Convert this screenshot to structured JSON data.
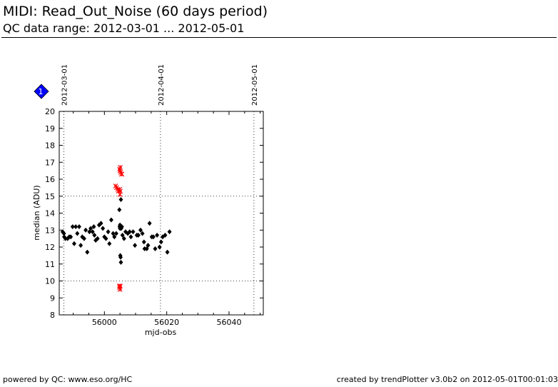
{
  "header": {
    "title": "MIDI: Read_Out_Noise (60 days period)",
    "subtitle": "QC data range: 2012-03-01 ... 2012-05-01"
  },
  "footer": {
    "left": "powered by QC: www.eso.org/HC",
    "right": "created by trendPlotter v3.0b2 on 2012-05-01T00:01:03"
  },
  "badge": {
    "label": "1",
    "color": "#0000ff",
    "icon": "blue-diamond-marker-icon"
  },
  "chart_data": {
    "type": "scatter",
    "title": "",
    "xlabel": "mjd-obs",
    "ylabel": "median (ADU)",
    "xlim": [
      55985.5,
      56051.0
    ],
    "ylim": [
      8,
      20
    ],
    "x_ticks": [
      56000,
      56020,
      56040
    ],
    "y_ticks": [
      8,
      9,
      10,
      11,
      12,
      13,
      14,
      15,
      16,
      17,
      18,
      19,
      20
    ],
    "reference_lines_y": [
      10,
      15
    ],
    "date_markers": [
      {
        "label": "2012-03-01",
        "x": 55987
      },
      {
        "label": "2012-04-01",
        "x": 56018
      },
      {
        "label": "2012-05-01",
        "x": 56048
      }
    ],
    "colors": {
      "nominal": "#000000",
      "outlier": "#ff0000"
    },
    "series": [
      {
        "marker": "diamond",
        "color": "#000000",
        "points": [
          [
            55986.6,
            12.9
          ],
          [
            55987.0,
            12.8
          ],
          [
            55987.1,
            12.6
          ],
          [
            55987.5,
            12.5
          ],
          [
            55988.2,
            12.5
          ],
          [
            55988.7,
            12.6
          ],
          [
            55989.2,
            12.6
          ],
          [
            55989.8,
            13.2
          ],
          [
            55990.3,
            12.2
          ],
          [
            55990.8,
            13.2
          ],
          [
            55991.3,
            12.8
          ],
          [
            55991.9,
            13.2
          ],
          [
            55992.4,
            12.1
          ],
          [
            55992.9,
            12.6
          ],
          [
            55993.5,
            12.5
          ],
          [
            55994.0,
            13.0
          ],
          [
            55994.5,
            11.7
          ],
          [
            55995.2,
            12.9
          ],
          [
            55995.6,
            13.1
          ],
          [
            55996.2,
            12.9
          ],
          [
            55996.6,
            13.2
          ],
          [
            55996.8,
            12.7
          ],
          [
            55997.2,
            12.4
          ],
          [
            55997.8,
            12.5
          ],
          [
            55998.3,
            13.3
          ],
          [
            55998.9,
            13.4
          ],
          [
            55999.5,
            13.1
          ],
          [
            56000.0,
            12.6
          ],
          [
            56000.5,
            12.5
          ],
          [
            56001.2,
            12.9
          ],
          [
            56001.6,
            12.2
          ],
          [
            56002.2,
            13.6
          ],
          [
            56002.8,
            12.8
          ],
          [
            56003.2,
            12.6
          ],
          [
            56003.8,
            12.8
          ],
          [
            56004.8,
            14.2
          ],
          [
            56004.9,
            13.2
          ],
          [
            56005.0,
            13.1
          ],
          [
            56005.0,
            13.3
          ],
          [
            56005.1,
            11.5
          ],
          [
            56005.2,
            11.4
          ],
          [
            56005.3,
            11.1
          ],
          [
            56005.3,
            14.8
          ],
          [
            56005.4,
            13.1
          ],
          [
            56005.6,
            13.2
          ],
          [
            56005.8,
            12.7
          ],
          [
            56006.3,
            12.5
          ],
          [
            56006.8,
            12.9
          ],
          [
            56007.5,
            12.8
          ],
          [
            56008.1,
            12.9
          ],
          [
            56008.5,
            12.6
          ],
          [
            56009.2,
            12.9
          ],
          [
            56009.8,
            12.1
          ],
          [
            56010.4,
            12.7
          ],
          [
            56010.9,
            12.7
          ],
          [
            56011.6,
            13.0
          ],
          [
            56012.2,
            12.8
          ],
          [
            56012.7,
            12.3
          ],
          [
            56012.9,
            11.9
          ],
          [
            56013.6,
            11.9
          ],
          [
            56014.0,
            12.1
          ],
          [
            56014.5,
            13.4
          ],
          [
            56015.2,
            12.6
          ],
          [
            56015.7,
            12.6
          ],
          [
            56016.3,
            11.9
          ],
          [
            56016.9,
            12.7
          ],
          [
            56017.7,
            12.0
          ],
          [
            56018.2,
            12.3
          ],
          [
            56018.7,
            12.6
          ],
          [
            56019.5,
            12.7
          ],
          [
            56020.2,
            11.7
          ],
          [
            56020.9,
            12.9
          ]
        ]
      },
      {
        "marker": "x",
        "color": "#ff0000",
        "points": [
          [
            56003.6,
            15.6
          ],
          [
            56003.9,
            15.5
          ],
          [
            56004.3,
            15.4
          ],
          [
            56004.5,
            15.3
          ],
          [
            56004.9,
            15.4
          ],
          [
            56005.0,
            15.1
          ],
          [
            56005.1,
            15.3
          ],
          [
            56004.9,
            16.6
          ],
          [
            56005.0,
            16.5
          ],
          [
            56005.1,
            16.7
          ],
          [
            56005.2,
            16.4
          ],
          [
            56005.5,
            16.3
          ],
          [
            56005.6,
            16.3
          ],
          [
            56004.8,
            9.7
          ],
          [
            56004.9,
            9.6
          ],
          [
            56005.0,
            9.5
          ],
          [
            56005.1,
            9.7
          ]
        ]
      }
    ]
  }
}
